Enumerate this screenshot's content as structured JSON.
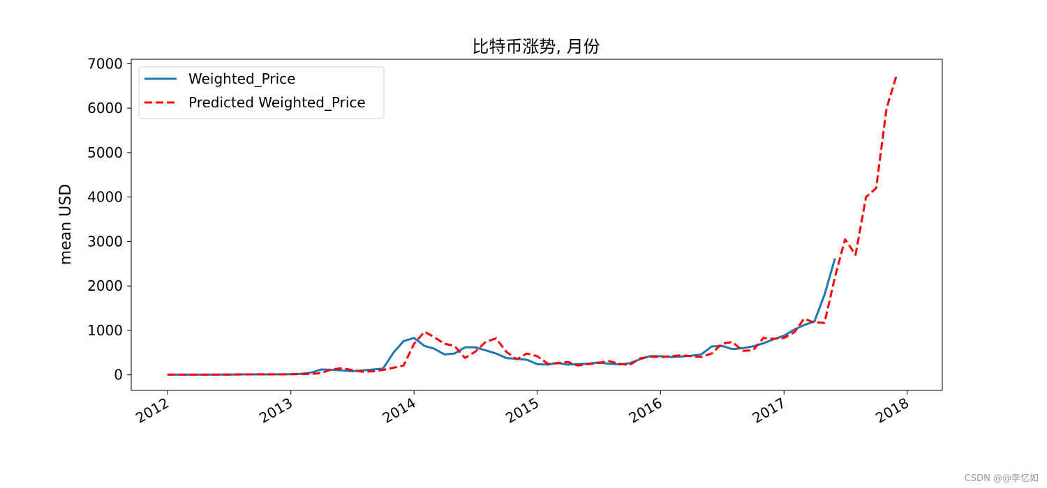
{
  "chart_data": {
    "type": "line",
    "title": "比特币涨势, 月份",
    "xlabel": "",
    "ylabel": "mean USD",
    "xlim": [
      "2011-09-16",
      "2018-04-15"
    ],
    "ylim": [
      -350,
      7100
    ],
    "x_ticks": [
      "2012",
      "2013",
      "2014",
      "2015",
      "2016",
      "2017",
      "2018"
    ],
    "y_ticks": [
      0,
      1000,
      2000,
      3000,
      4000,
      5000,
      6000,
      7000
    ],
    "grid": false,
    "legend_position": "upper left",
    "series": [
      {
        "name": "Weighted_Price",
        "color": "#1f77b4",
        "style": "solid",
        "x": [
          "2012-01-01",
          "2012-02-01",
          "2012-03-01",
          "2012-04-01",
          "2012-05-01",
          "2012-06-01",
          "2012-07-01",
          "2012-08-01",
          "2012-09-01",
          "2012-10-01",
          "2012-11-01",
          "2012-12-01",
          "2013-01-01",
          "2013-02-01",
          "2013-03-01",
          "2013-04-01",
          "2013-05-01",
          "2013-06-01",
          "2013-07-01",
          "2013-08-01",
          "2013-09-01",
          "2013-10-01",
          "2013-11-01",
          "2013-12-01",
          "2014-01-01",
          "2014-02-01",
          "2014-03-01",
          "2014-04-01",
          "2014-05-01",
          "2014-06-01",
          "2014-07-01",
          "2014-08-01",
          "2014-09-01",
          "2014-10-01",
          "2014-11-01",
          "2014-12-01",
          "2015-01-01",
          "2015-02-01",
          "2015-03-01",
          "2015-04-01",
          "2015-05-01",
          "2015-06-01",
          "2015-07-01",
          "2015-08-01",
          "2015-09-01",
          "2015-10-01",
          "2015-11-01",
          "2015-12-01",
          "2016-01-01",
          "2016-02-01",
          "2016-03-01",
          "2016-04-01",
          "2016-05-01",
          "2016-06-01",
          "2016-07-01",
          "2016-08-01",
          "2016-09-01",
          "2016-10-01",
          "2016-11-01",
          "2016-12-01",
          "2017-01-01",
          "2017-02-01",
          "2017-03-01",
          "2017-04-01",
          "2017-05-01",
          "2017-06-01",
          "2017-07-01"
        ],
        "values": [
          6,
          5,
          5,
          5,
          5,
          6,
          7,
          10,
          11,
          12,
          11,
          13,
          15,
          25,
          50,
          120,
          115,
          100,
          80,
          100,
          120,
          140,
          500,
          760,
          830,
          650,
          590,
          460,
          480,
          620,
          620,
          550,
          480,
          380,
          360,
          340,
          240,
          230,
          270,
          230,
          240,
          250,
          280,
          250,
          235,
          260,
          350,
          420,
          420,
          400,
          410,
          430,
          460,
          640,
          650,
          580,
          600,
          640,
          710,
          800,
          880,
          1020,
          1120,
          1200,
          1800,
          2620,
          null
        ]
      },
      {
        "name": "Predicted Weighted_Price",
        "color": "#ff0000",
        "style": "dashed",
        "x": [
          "2012-01-01",
          "2012-02-01",
          "2012-03-01",
          "2012-04-01",
          "2012-05-01",
          "2012-06-01",
          "2012-07-01",
          "2012-08-01",
          "2012-09-01",
          "2012-10-01",
          "2012-11-01",
          "2012-12-01",
          "2013-01-01",
          "2013-02-01",
          "2013-03-01",
          "2013-04-01",
          "2013-05-01",
          "2013-06-01",
          "2013-07-01",
          "2013-08-01",
          "2013-09-01",
          "2013-10-01",
          "2013-11-01",
          "2013-12-01",
          "2014-01-01",
          "2014-02-01",
          "2014-03-01",
          "2014-04-01",
          "2014-05-01",
          "2014-06-01",
          "2014-07-01",
          "2014-08-01",
          "2014-09-01",
          "2014-10-01",
          "2014-11-01",
          "2014-12-01",
          "2015-01-01",
          "2015-02-01",
          "2015-03-01",
          "2015-04-01",
          "2015-05-01",
          "2015-06-01",
          "2015-07-01",
          "2015-08-01",
          "2015-09-01",
          "2015-10-01",
          "2015-11-01",
          "2015-12-01",
          "2016-01-01",
          "2016-02-01",
          "2016-03-01",
          "2016-04-01",
          "2016-05-01",
          "2016-06-01",
          "2016-07-01",
          "2016-08-01",
          "2016-09-01",
          "2016-10-01",
          "2016-11-01",
          "2016-12-01",
          "2017-01-01",
          "2017-02-01",
          "2017-03-01",
          "2017-04-01",
          "2017-05-01",
          "2017-06-01",
          "2017-07-01",
          "2017-08-01",
          "2017-09-01",
          "2017-10-01",
          "2017-11-01",
          "2017-12-01",
          "2018-01-01"
        ],
        "values": [
          5,
          5,
          4,
          5,
          5,
          5,
          6,
          8,
          10,
          12,
          12,
          11,
          14,
          15,
          20,
          40,
          120,
          150,
          110,
          70,
          80,
          110,
          160,
          210,
          700,
          970,
          850,
          700,
          650,
          380,
          520,
          740,
          820,
          520,
          350,
          480,
          420,
          250,
          260,
          290,
          210,
          240,
          270,
          310,
          250,
          220,
          370,
          410,
          400,
          420,
          440,
          420,
          400,
          480,
          700,
          740,
          540,
          550,
          830,
          810,
          830,
          960,
          1260,
          1180,
          1170,
          2200,
          3050,
          2700,
          4000,
          4200,
          6000,
          6750,
          null
        ]
      }
    ]
  },
  "watermark": "CSDN @@李忆如"
}
